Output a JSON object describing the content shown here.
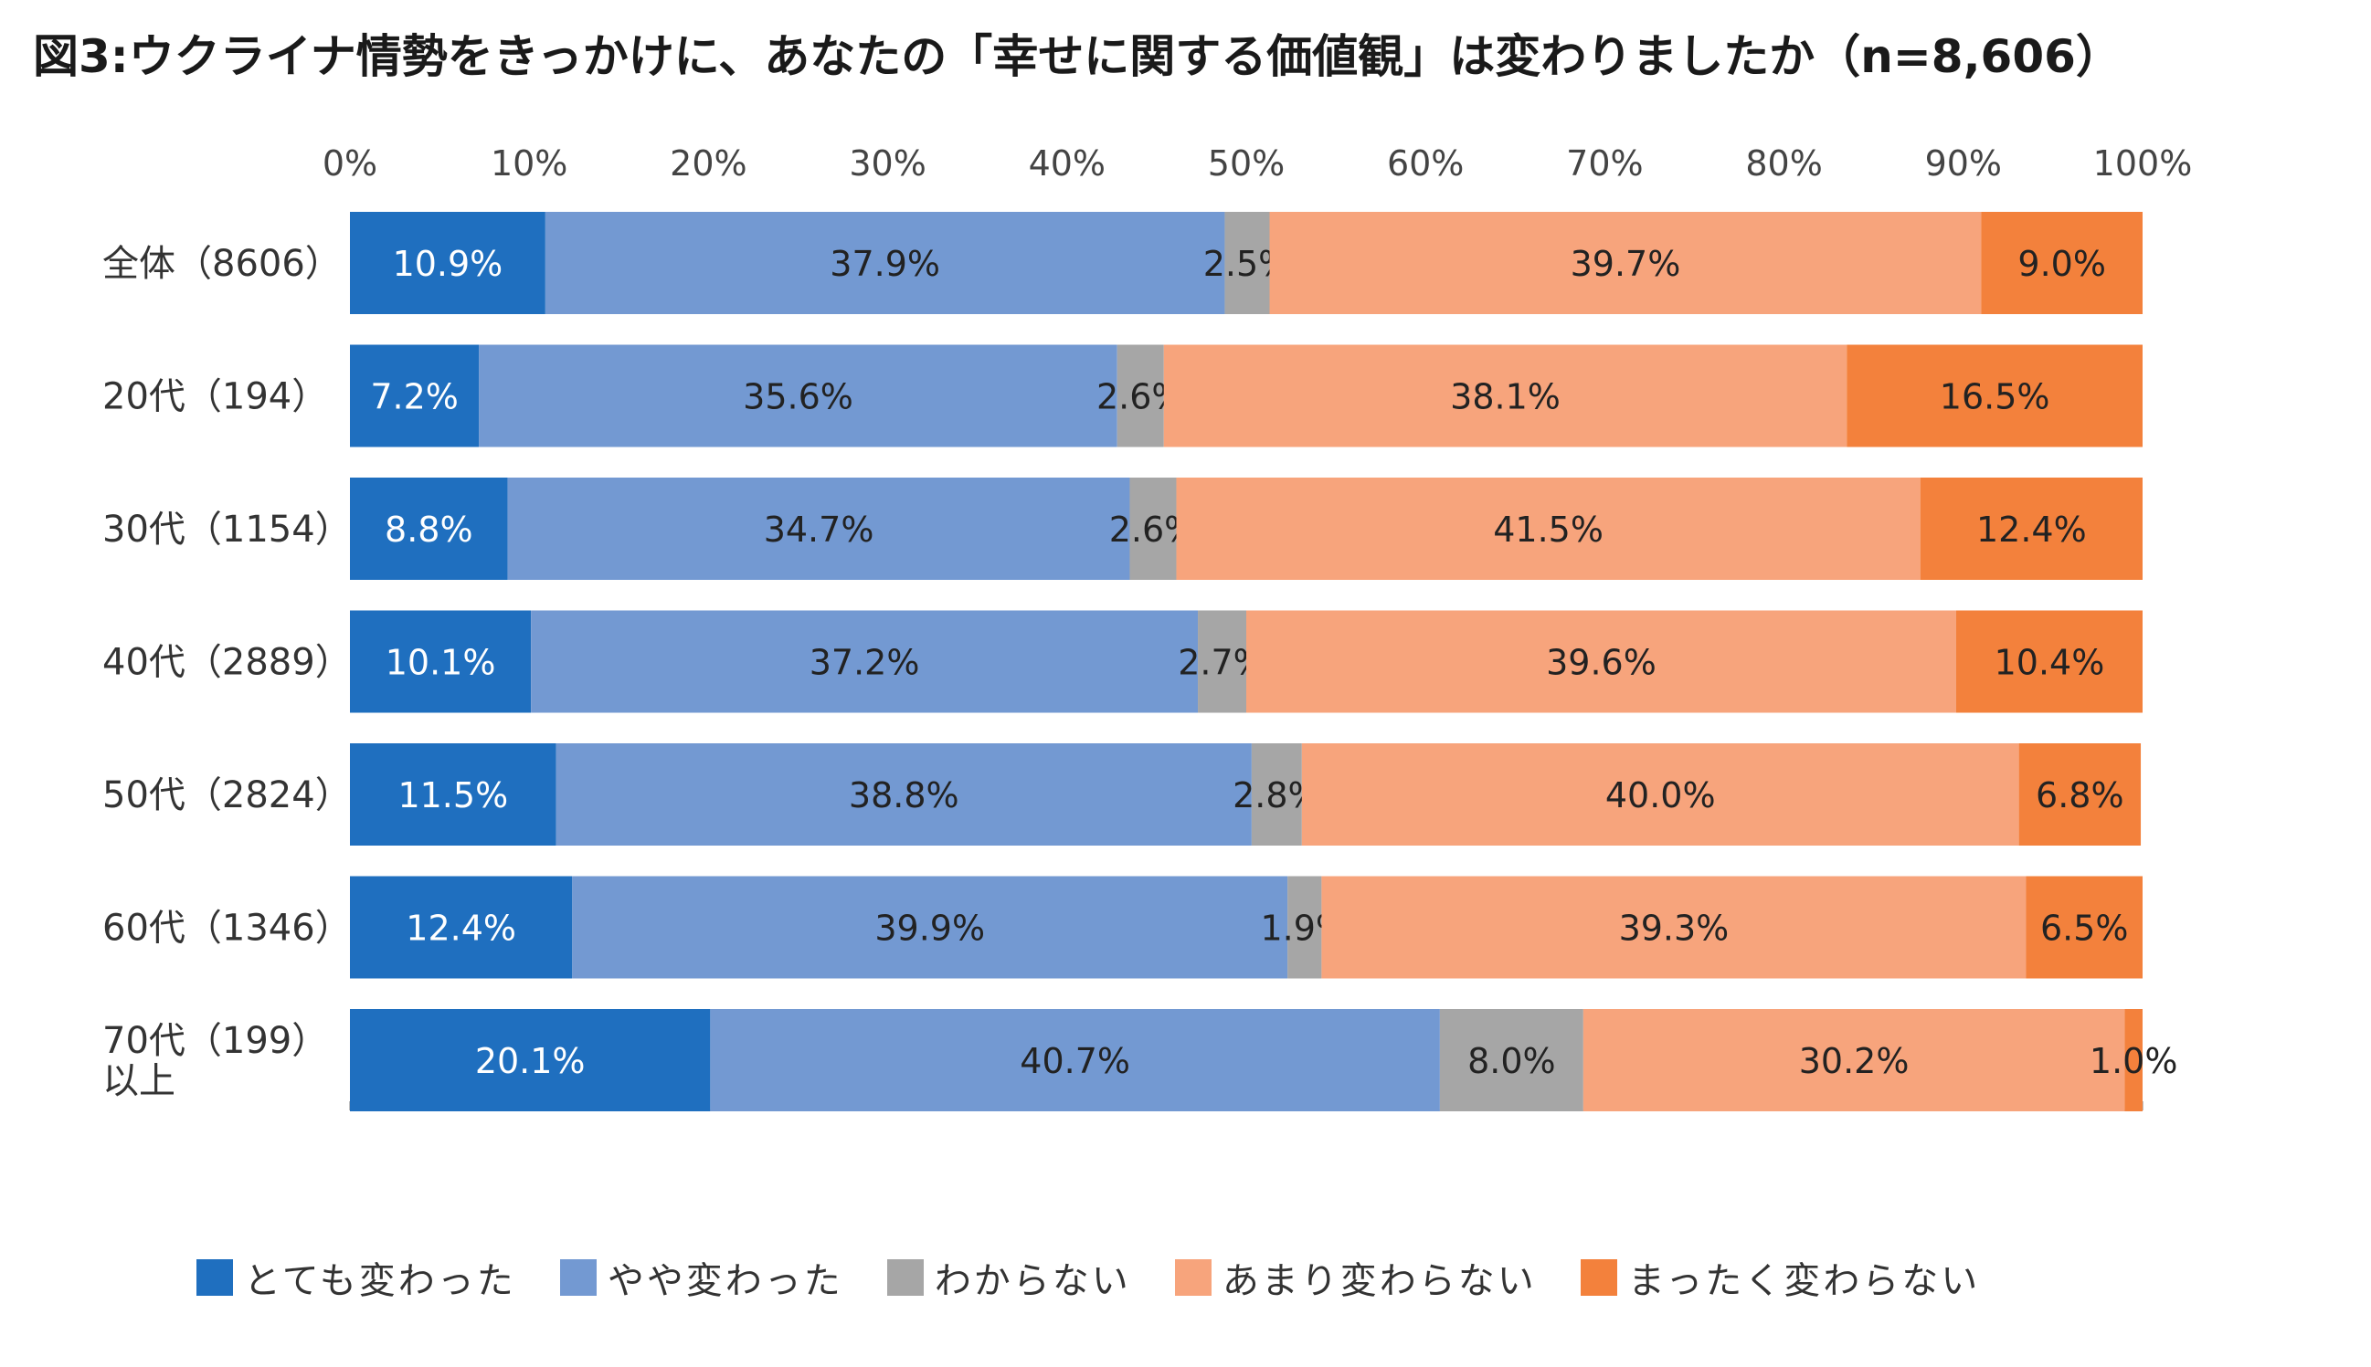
{
  "title": "図3:ウクライナ情勢をきっかけに、あなたの「幸せに関する価値観」は変わりましたか（n=8,606）",
  "chart_data": {
    "type": "bar",
    "orientation": "horizontal",
    "stacked": true,
    "normalized_100": true,
    "title": "図3:ウクライナ情勢をきっかけに、あなたの「幸せに関する価値観」は変わりましたか（n=8,606）",
    "xlim": [
      0,
      100
    ],
    "x_ticks": [
      "0%",
      "10%",
      "20%",
      "30%",
      "40%",
      "50%",
      "60%",
      "70%",
      "80%",
      "90%",
      "100%"
    ],
    "x_axis_position": "top",
    "legend_position": "bottom",
    "categories": [
      [
        "全体（8606）"
      ],
      [
        "20代（194）"
      ],
      [
        "30代（1154）"
      ],
      [
        "40代（2889）"
      ],
      [
        "50代（2824）"
      ],
      [
        "60代（1346）"
      ],
      [
        "70代（199）",
        "以上"
      ]
    ],
    "series": [
      {
        "name": "とても変わった",
        "color": "#1f6fbf",
        "label_color": "#ffffff",
        "values": [
          10.9,
          7.2,
          8.8,
          10.1,
          11.5,
          12.4,
          20.1
        ]
      },
      {
        "name": "やや変わった",
        "color": "#7399d2",
        "label_color": "#222222",
        "values": [
          37.9,
          35.6,
          34.7,
          37.2,
          38.8,
          39.9,
          40.7
        ]
      },
      {
        "name": "わからない",
        "color": "#a6a6a6",
        "label_color": "#222222",
        "values": [
          2.5,
          2.6,
          2.6,
          2.7,
          2.8,
          1.9,
          8.0
        ]
      },
      {
        "name": "あまり変わらない",
        "color": "#f7a47c",
        "label_color": "#222222",
        "values": [
          39.7,
          38.1,
          41.5,
          39.6,
          40.0,
          39.3,
          30.2
        ]
      },
      {
        "name": "まったく変わらない",
        "color": "#f3813c",
        "label_color": "#222222",
        "values": [
          9.0,
          16.5,
          12.4,
          10.4,
          6.8,
          6.5,
          1.0
        ]
      }
    ]
  }
}
